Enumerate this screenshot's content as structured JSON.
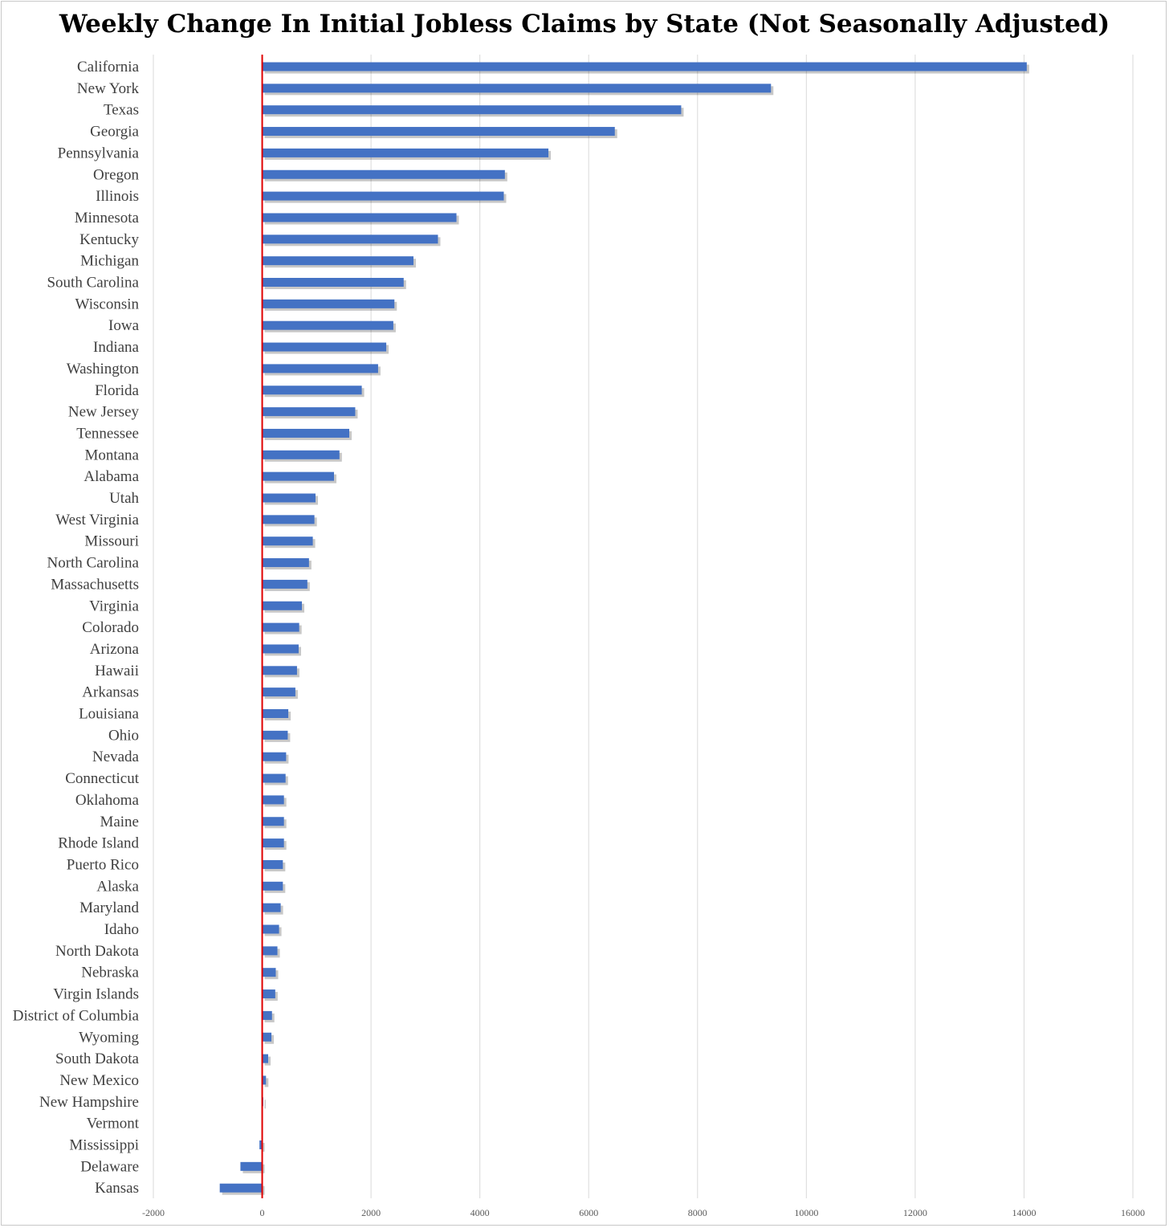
{
  "chart_data": {
    "type": "bar",
    "orientation": "horizontal",
    "title": "Weekly Change In Initial Jobless Claims by State (Not Seasonally Adjusted)",
    "xlabel": "",
    "ylabel": "",
    "xlim": [
      -2000,
      16000
    ],
    "x_ticks": [
      -2000,
      0,
      2000,
      4000,
      6000,
      8000,
      10000,
      12000,
      14000,
      16000
    ],
    "x_tick_labels": [
      "-2000",
      "0",
      "2000",
      "4000",
      "6000",
      "8000",
      "10000",
      "12000",
      "14000",
      "16000"
    ],
    "grid": "vertical",
    "legend": "none",
    "bar_color": "#4472C4",
    "zero_line_color": "#E00000",
    "categories": [
      "California",
      "New York",
      "Texas",
      "Georgia",
      "Pennsylvania",
      "Oregon",
      "Illinois",
      "Minnesota",
      "Kentucky",
      "Michigan",
      "South Carolina",
      "Wisconsin",
      "Iowa",
      "Indiana",
      "Washington",
      "Florida",
      "New Jersey",
      "Tennessee",
      "Montana",
      "Alabama",
      "Utah",
      "West Virginia",
      "Missouri",
      "North Carolina",
      "Massachusetts",
      "Virginia",
      "Colorado",
      "Arizona",
      "Hawaii",
      "Arkansas",
      "Louisiana",
      "Ohio",
      "Nevada",
      "Connecticut",
      "Oklahoma",
      "Maine",
      "Rhode Island",
      "Puerto Rico",
      "Alaska",
      "Maryland",
      "Idaho",
      "North Dakota",
      "Nebraska",
      "Virgin Islands",
      "District of Columbia",
      "Wyoming",
      "South Dakota",
      "New Mexico",
      "New Hampshire",
      "Vermont",
      "Mississippi",
      "Delaware",
      "Kansas"
    ],
    "values": [
      14050,
      9350,
      7700,
      6480,
      5260,
      4460,
      4440,
      3570,
      3230,
      2780,
      2600,
      2430,
      2410,
      2280,
      2130,
      1830,
      1710,
      1600,
      1420,
      1320,
      980,
      960,
      930,
      860,
      830,
      730,
      680,
      670,
      640,
      610,
      480,
      470,
      440,
      430,
      400,
      400,
      400,
      380,
      380,
      340,
      310,
      280,
      250,
      240,
      180,
      170,
      110,
      70,
      20,
      0,
      -50,
      -400,
      -780
    ]
  }
}
